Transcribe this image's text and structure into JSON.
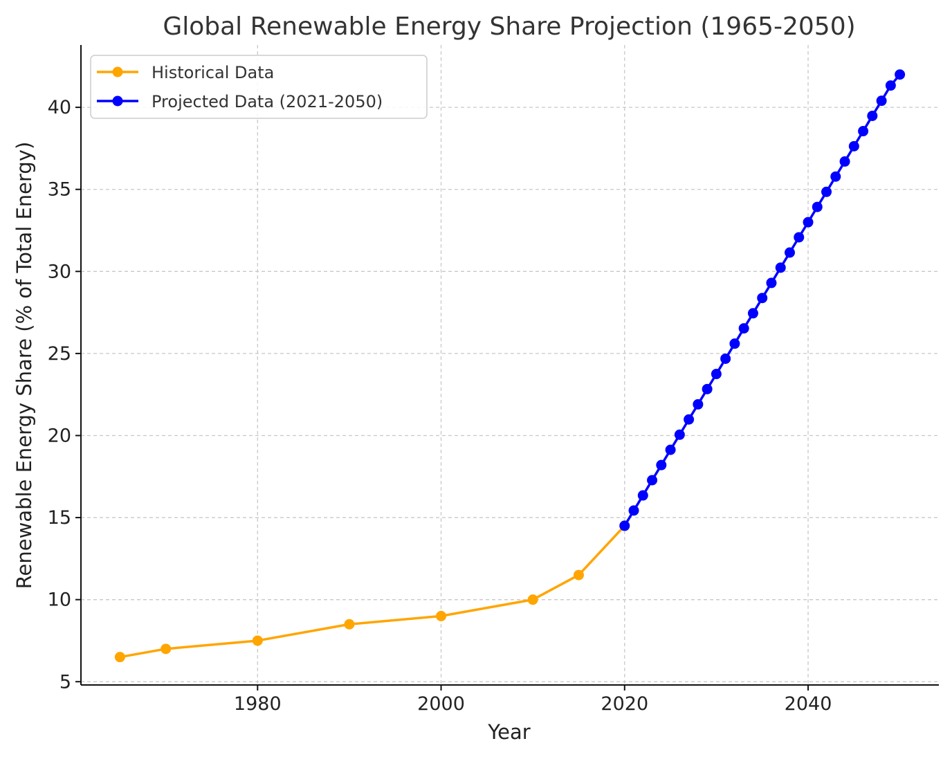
{
  "chart_data": {
    "type": "line",
    "title": "Global Renewable Energy Share Projection (1965-2050)",
    "xlabel": "Year",
    "ylabel": "Renewable Energy Share (% of Total Energy)",
    "xlim": [
      1960.75,
      2054.25
    ],
    "ylim": [
      4.8,
      43.8
    ],
    "xticks": [
      1980,
      2000,
      2020,
      2040
    ],
    "yticks": [
      5,
      10,
      15,
      20,
      25,
      30,
      35,
      40
    ],
    "grid": true,
    "legend_position": "top-left",
    "series": [
      {
        "name": "Historical Data",
        "color": "#FFA500",
        "marker": "circle",
        "x": [
          1965,
          1970,
          1980,
          1990,
          2000,
          2010,
          2015,
          2020
        ],
        "y": [
          6.5,
          7.0,
          7.5,
          8.5,
          9.0,
          10.0,
          11.5,
          14.5
        ]
      },
      {
        "name": "Projected Data (2021-2050)",
        "color": "#0000FF",
        "marker": "circle",
        "x": [
          2020,
          2021,
          2022,
          2023,
          2024,
          2025,
          2026,
          2027,
          2028,
          2029,
          2030,
          2031,
          2032,
          2033,
          2034,
          2035,
          2036,
          2037,
          2038,
          2039,
          2040,
          2041,
          2042,
          2043,
          2044,
          2045,
          2046,
          2047,
          2048,
          2049,
          2050
        ],
        "y": [
          14.5,
          15.43,
          16.35,
          17.28,
          18.2,
          19.13,
          20.05,
          20.98,
          21.9,
          22.83,
          23.75,
          24.68,
          25.6,
          26.53,
          27.45,
          28.38,
          29.3,
          30.23,
          31.15,
          32.08,
          33.0,
          33.93,
          34.85,
          35.78,
          36.7,
          37.63,
          38.55,
          39.48,
          40.4,
          41.33,
          42.0
        ]
      }
    ]
  }
}
